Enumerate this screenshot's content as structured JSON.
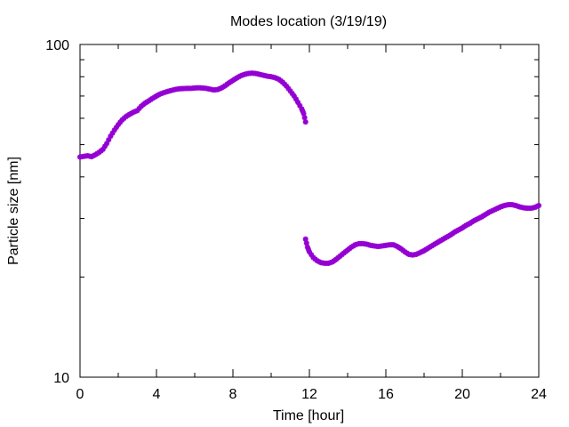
{
  "chart_data": {
    "type": "scatter",
    "title": "Modes location (3/19/19)",
    "xlabel": "Time [hour]",
    "ylabel": "Particle size [nm]",
    "xlim": [
      0,
      24
    ],
    "ylim": [
      10,
      100
    ],
    "yscale": "log",
    "grid": false,
    "legend": "none",
    "xticks": [
      "0",
      "4",
      "8",
      "12",
      "16",
      "20",
      "24"
    ],
    "yticks": [
      "10",
      "100"
    ],
    "marker_color": "#9400d3",
    "marker": "asterisk",
    "segments": [
      {
        "x": [
          0.0,
          0.2,
          0.4,
          0.6,
          0.8,
          1.0,
          1.2,
          1.4,
          1.6,
          1.8,
          2.0,
          2.2,
          2.4,
          2.6,
          2.8,
          3.0,
          3.2,
          3.4,
          3.6,
          3.8,
          4.0,
          4.2,
          4.4,
          4.6,
          4.8,
          5.0,
          5.2,
          5.4,
          5.6,
          5.8,
          6.0,
          6.2,
          6.4,
          6.6,
          6.8,
          7.0,
          7.2,
          7.4,
          7.6,
          7.8,
          8.0,
          8.2,
          8.4,
          8.6,
          8.8,
          9.0,
          9.2,
          9.4,
          9.6,
          9.8,
          10.0,
          10.2,
          10.4,
          10.6,
          10.8,
          11.0,
          11.2,
          11.4,
          11.6,
          11.7,
          11.8
        ],
        "y": [
          45.9,
          46.1,
          46.3,
          46.0,
          46.6,
          47.4,
          48.4,
          50.4,
          53.0,
          55.3,
          57.4,
          59.3,
          60.7,
          61.7,
          62.6,
          63.3,
          65.2,
          66.6,
          67.7,
          68.9,
          70.0,
          71.0,
          71.7,
          72.3,
          72.8,
          73.3,
          73.6,
          73.7,
          73.8,
          73.8,
          74.0,
          74.1,
          74.0,
          73.8,
          73.4,
          73.0,
          73.2,
          74.0,
          75.2,
          76.7,
          78.0,
          79.3,
          80.5,
          81.3,
          81.8,
          82.0,
          81.8,
          81.3,
          80.8,
          80.3,
          80.0,
          79.5,
          78.6,
          77.0,
          75.0,
          72.5,
          70.0,
          67.0,
          64.0,
          62.0,
          58.5
        ]
      },
      {
        "x": [
          11.8,
          11.9,
          12.0,
          12.2,
          12.4,
          12.6,
          12.8,
          13.0,
          13.2,
          13.4,
          13.6,
          13.8,
          14.0,
          14.2,
          14.4,
          14.6,
          14.8,
          15.0,
          15.2,
          15.4,
          15.6,
          15.8,
          16.0,
          16.2,
          16.4,
          16.6,
          16.8,
          17.0,
          17.2,
          17.4,
          17.6,
          17.8,
          18.0,
          18.2,
          18.4,
          18.6,
          18.8,
          19.0,
          19.2,
          19.4,
          19.6,
          19.8,
          20.0,
          20.2,
          20.4,
          20.6,
          20.8,
          21.0,
          21.2,
          21.4,
          21.6,
          21.8,
          22.0,
          22.2,
          22.4,
          22.6,
          22.8,
          23.0,
          23.2,
          23.4,
          23.6,
          23.8,
          24.0
        ],
        "y": [
          26.0,
          24.6,
          23.8,
          22.9,
          22.4,
          22.1,
          22.0,
          22.0,
          22.2,
          22.6,
          23.1,
          23.6,
          24.1,
          24.6,
          25.0,
          25.2,
          25.2,
          25.1,
          24.9,
          24.8,
          24.7,
          24.8,
          24.9,
          25.0,
          25.0,
          24.7,
          24.3,
          23.8,
          23.4,
          23.3,
          23.4,
          23.7,
          24.0,
          24.4,
          24.8,
          25.2,
          25.6,
          26.0,
          26.4,
          26.8,
          27.3,
          27.7,
          28.1,
          28.6,
          29.0,
          29.5,
          29.9,
          30.3,
          30.8,
          31.3,
          31.7,
          32.1,
          32.5,
          32.8,
          33.0,
          33.0,
          32.8,
          32.5,
          32.3,
          32.2,
          32.2,
          32.4,
          32.8
        ]
      }
    ]
  }
}
